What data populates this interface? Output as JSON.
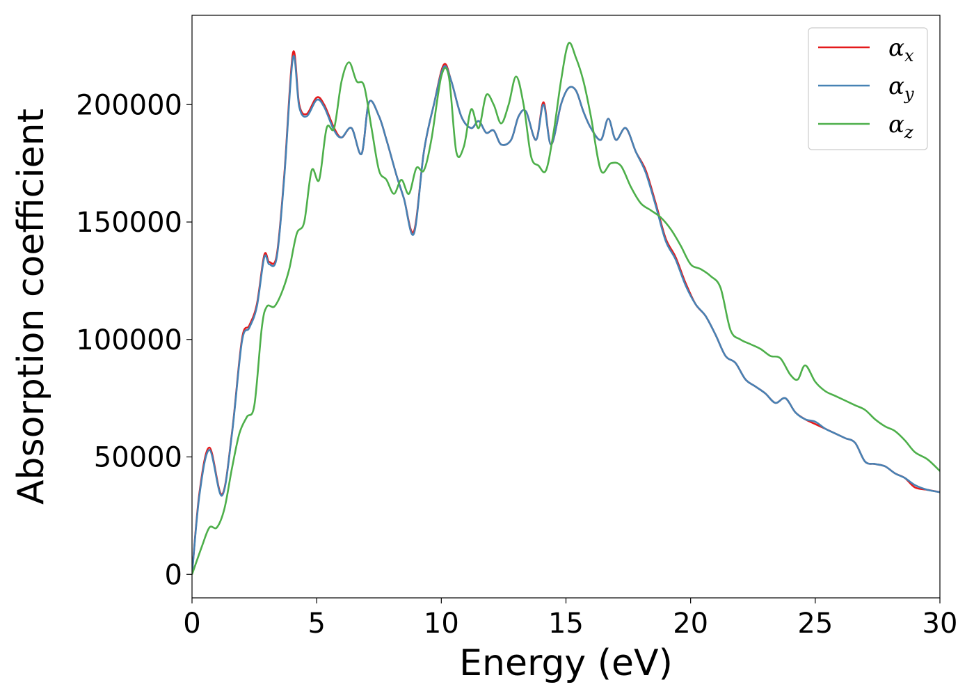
{
  "chart_data": {
    "type": "line",
    "xlabel": "Energy (eV)",
    "ylabel": "Absorption coefficient",
    "xlim": [
      0,
      30
    ],
    "ylim": [
      -10000,
      238000
    ],
    "xticks": [
      0,
      5,
      10,
      15,
      20,
      25,
      30
    ],
    "yticks": [
      0,
      50000,
      100000,
      150000,
      200000
    ],
    "grid": false,
    "legend_position": "top-right",
    "series": [
      {
        "name": "αx",
        "symbol": "α",
        "subscript": "x",
        "color": "#e41a1c",
        "x": [
          0,
          0.3,
          0.7,
          1.2,
          1.6,
          2.0,
          2.3,
          2.6,
          2.9,
          3.1,
          3.4,
          3.7,
          4.05,
          4.3,
          4.6,
          5.0,
          5.3,
          5.7,
          6.0,
          6.4,
          6.8,
          7.1,
          7.5,
          7.8,
          8.2,
          8.5,
          8.9,
          9.3,
          9.7,
          10.1,
          10.4,
          10.8,
          11.2,
          11.5,
          11.8,
          12.1,
          12.4,
          12.8,
          13.1,
          13.4,
          13.8,
          14.1,
          14.4,
          14.8,
          15.1,
          15.4,
          15.7,
          16.0,
          16.4,
          16.7,
          17.0,
          17.4,
          17.8,
          18.2,
          18.6,
          19.0,
          19.4,
          19.8,
          20.2,
          20.6,
          21.0,
          21.4,
          21.8,
          22.2,
          22.6,
          23.0,
          23.4,
          23.8,
          24.2,
          24.6,
          25.0,
          25.4,
          25.8,
          26.2,
          26.6,
          27.0,
          27.4,
          27.8,
          28.2,
          28.6,
          29.0,
          29.5,
          30.0
        ],
        "y": [
          0,
          35000,
          54000,
          34000,
          60000,
          100000,
          106000,
          115000,
          136000,
          133000,
          136000,
          170000,
          222000,
          200000,
          196000,
          203000,
          200000,
          190000,
          186000,
          190000,
          179000,
          201000,
          195000,
          185000,
          170000,
          160000,
          146000,
          180000,
          200000,
          217000,
          210000,
          195000,
          190000,
          193000,
          188000,
          189000,
          183000,
          185000,
          195000,
          197000,
          185000,
          201000,
          183000,
          200000,
          207000,
          206000,
          197000,
          190000,
          185000,
          194000,
          185000,
          190000,
          180000,
          172000,
          158000,
          143000,
          135000,
          124000,
          115000,
          110000,
          102000,
          93000,
          90000,
          83000,
          80000,
          77000,
          73000,
          75000,
          69000,
          66000,
          64000,
          62000,
          60000,
          58000,
          56000,
          48000,
          47000,
          46000,
          43000,
          41000,
          37000,
          36000,
          35000
        ]
      },
      {
        "name": "αy",
        "symbol": "α",
        "subscript": "y",
        "color": "#4682b4",
        "x": [
          0,
          0.3,
          0.7,
          1.2,
          1.6,
          2.0,
          2.3,
          2.6,
          2.9,
          3.1,
          3.4,
          3.7,
          4.05,
          4.3,
          4.6,
          5.0,
          5.3,
          5.7,
          6.0,
          6.4,
          6.8,
          7.1,
          7.5,
          7.8,
          8.2,
          8.5,
          8.9,
          9.3,
          9.7,
          10.1,
          10.4,
          10.8,
          11.2,
          11.5,
          11.8,
          12.1,
          12.4,
          12.8,
          13.1,
          13.4,
          13.8,
          14.1,
          14.4,
          14.8,
          15.1,
          15.4,
          15.7,
          16.0,
          16.4,
          16.7,
          17.0,
          17.4,
          17.8,
          18.2,
          18.6,
          19.0,
          19.4,
          19.8,
          20.2,
          20.6,
          21.0,
          21.4,
          21.8,
          22.2,
          22.6,
          23.0,
          23.4,
          23.8,
          24.2,
          24.6,
          25.0,
          25.4,
          25.8,
          26.2,
          26.6,
          27.0,
          27.4,
          27.8,
          28.2,
          28.6,
          29.0,
          29.5,
          30.0
        ],
        "y": [
          0,
          34000,
          53000,
          33500,
          59500,
          99000,
          105000,
          114000,
          135000,
          132000,
          135000,
          169000,
          220000,
          199000,
          195000,
          202000,
          199000,
          189000,
          186000,
          190000,
          179000,
          201000,
          195000,
          185000,
          170000,
          160000,
          145000,
          180000,
          200000,
          216000,
          210000,
          195000,
          190000,
          193000,
          188000,
          189000,
          183000,
          185000,
          195000,
          197000,
          185000,
          200000,
          183000,
          200000,
          207000,
          206000,
          197000,
          190000,
          185000,
          194000,
          185000,
          190000,
          180000,
          171000,
          157000,
          142000,
          134000,
          123000,
          115000,
          110000,
          102000,
          93000,
          90000,
          83000,
          80000,
          77000,
          73000,
          75000,
          69000,
          66000,
          65000,
          62000,
          60000,
          58000,
          56000,
          48000,
          47000,
          46000,
          43000,
          41000,
          38000,
          36000,
          35000
        ]
      },
      {
        "name": "αz",
        "symbol": "α",
        "subscript": "z",
        "color": "#4daf4a",
        "x": [
          0,
          0.4,
          0.7,
          1.0,
          1.3,
          1.6,
          1.9,
          2.2,
          2.5,
          2.8,
          3.0,
          3.3,
          3.6,
          3.9,
          4.2,
          4.5,
          4.8,
          5.1,
          5.4,
          5.7,
          6.0,
          6.3,
          6.6,
          6.9,
          7.2,
          7.5,
          7.8,
          8.1,
          8.4,
          8.7,
          9.0,
          9.3,
          9.6,
          10.0,
          10.3,
          10.6,
          10.9,
          11.2,
          11.5,
          11.8,
          12.1,
          12.4,
          12.7,
          13.0,
          13.3,
          13.6,
          13.9,
          14.2,
          14.5,
          14.8,
          15.1,
          15.4,
          15.7,
          16.0,
          16.4,
          16.8,
          17.2,
          17.6,
          18.0,
          18.4,
          18.8,
          19.2,
          19.6,
          20.0,
          20.4,
          20.8,
          21.2,
          21.6,
          22.0,
          22.4,
          22.8,
          23.2,
          23.6,
          24.0,
          24.3,
          24.6,
          25.0,
          25.4,
          25.8,
          26.2,
          26.6,
          27.0,
          27.4,
          27.8,
          28.2,
          28.6,
          29.0,
          29.5,
          30.0
        ],
        "y": [
          0,
          12000,
          20000,
          20000,
          28000,
          45000,
          60000,
          67000,
          72000,
          105000,
          114000,
          114000,
          120000,
          130000,
          145000,
          150000,
          172000,
          168000,
          190000,
          190000,
          210000,
          218000,
          210000,
          208000,
          190000,
          172000,
          168000,
          162000,
          168000,
          162000,
          173000,
          172000,
          185000,
          212000,
          212000,
          180000,
          182000,
          198000,
          190000,
          204000,
          200000,
          192000,
          200000,
          212000,
          200000,
          178000,
          174000,
          172000,
          188000,
          210000,
          226000,
          220000,
          210000,
          195000,
          172000,
          175000,
          174000,
          165000,
          158000,
          155000,
          152000,
          147000,
          140000,
          132000,
          130000,
          127000,
          122000,
          104000,
          100000,
          98000,
          96000,
          93000,
          92000,
          85000,
          83000,
          89000,
          82000,
          78000,
          76000,
          74000,
          72000,
          70000,
          66000,
          63000,
          61000,
          57000,
          52000,
          49000,
          44000
        ]
      }
    ]
  }
}
